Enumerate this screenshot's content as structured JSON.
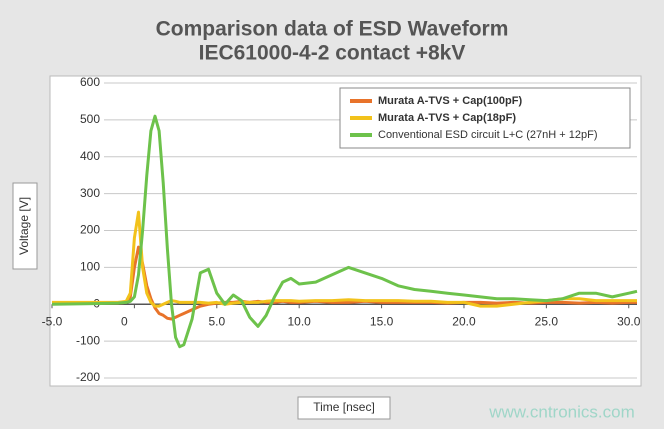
{
  "chart_data": {
    "type": "line",
    "title": "Comparison data of ESD Waveform",
    "subtitle": "IEC61000-4-2 contact +8kV",
    "x_label": "Time [nsec]",
    "y_label": "Voltage [V]",
    "x": [
      -5,
      -2,
      -1,
      -0.5,
      -0.25,
      0,
      0.25,
      0.5,
      0.75,
      1,
      1.25,
      1.5,
      1.75,
      2,
      2.25,
      2.5,
      2.75,
      3,
      3.5,
      4,
      4.5,
      5,
      5.5,
      6,
      6.5,
      7,
      7.5,
      8,
      8.5,
      9,
      9.5,
      10,
      11,
      12,
      13,
      14,
      15,
      16,
      17,
      18,
      19,
      20,
      21,
      22,
      23,
      24,
      25,
      26,
      27,
      28,
      29,
      30,
      30.5
    ],
    "series": [
      {
        "name": "Murata A-TVS + Cap(100pF)",
        "color": "#e8732a",
        "values": [
          2,
          3,
          3,
          5,
          20,
          100,
          155,
          110,
          50,
          15,
          -10,
          -25,
          -30,
          -38,
          -40,
          -35,
          -30,
          -25,
          -15,
          -5,
          0,
          3,
          5,
          5,
          8,
          5,
          8,
          5,
          5,
          8,
          5,
          5,
          8,
          5,
          5,
          8,
          5,
          5,
          5,
          5,
          3,
          5,
          5,
          3,
          5,
          3,
          5,
          5,
          3,
          5,
          3,
          5,
          5
        ]
      },
      {
        "name": "Murata A-TVS + Cap(18pF)",
        "color": "#f2c21b",
        "values": [
          5,
          5,
          5,
          8,
          30,
          180,
          250,
          100,
          30,
          5,
          -5,
          -5,
          0,
          5,
          10,
          8,
          5,
          5,
          5,
          5,
          3,
          5,
          0,
          3,
          5,
          5,
          5,
          8,
          10,
          10,
          10,
          8,
          10,
          10,
          12,
          10,
          10,
          10,
          8,
          8,
          5,
          5,
          -5,
          -5,
          0,
          5,
          10,
          15,
          15,
          10,
          10,
          10,
          10
        ]
      },
      {
        "name": "Conventional ESD circuit L+C (27nH + 12pF)",
        "color": "#6dc24b",
        "values": [
          0,
          2,
          3,
          5,
          8,
          20,
          80,
          200,
          350,
          470,
          510,
          470,
          330,
          150,
          0,
          -90,
          -115,
          -110,
          -40,
          85,
          95,
          30,
          0,
          25,
          10,
          -35,
          -60,
          -30,
          20,
          60,
          70,
          55,
          60,
          80,
          100,
          85,
          70,
          50,
          40,
          35,
          30,
          25,
          20,
          15,
          15,
          12,
          10,
          15,
          30,
          30,
          20,
          30,
          35
        ]
      }
    ],
    "xlim": [
      -5,
      30.5
    ],
    "xticks": [
      {
        "value": -5,
        "label": "-5.0"
      },
      0,
      {
        "value": 5,
        "label": "5.0"
      },
      {
        "value": 10,
        "label": "10.0"
      },
      {
        "value": 15,
        "label": "15.0"
      },
      {
        "value": 20,
        "label": "20.0"
      },
      {
        "value": 25,
        "label": "25.0"
      },
      {
        "value": 30,
        "label": "30.0"
      }
    ],
    "ylim": [
      -200,
      600
    ],
    "yticks": [
      -200,
      -100,
      0,
      100,
      200,
      300,
      400,
      500,
      600
    ],
    "grid": true,
    "legend": "top-right"
  },
  "watermark": "www.cntronics.com"
}
